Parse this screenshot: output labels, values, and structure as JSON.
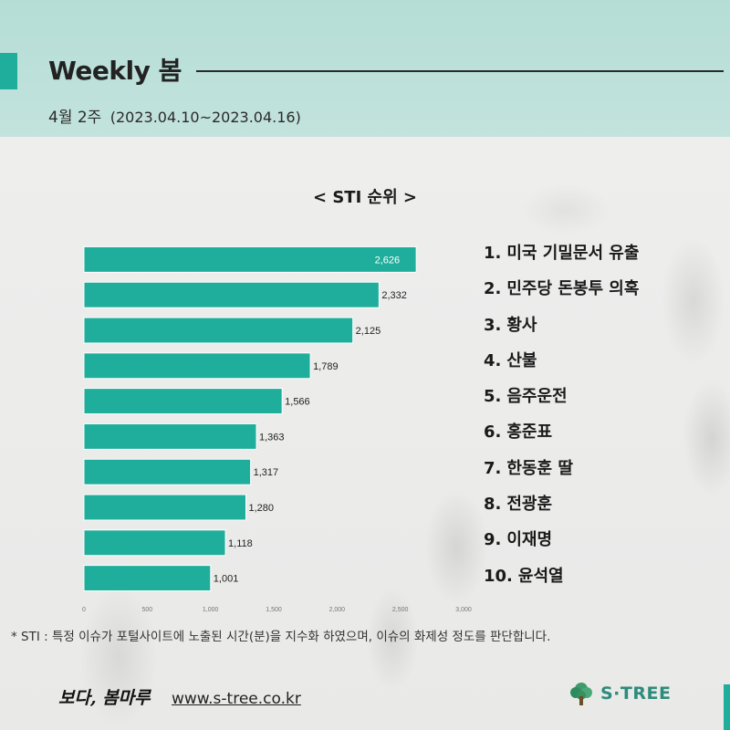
{
  "header": {
    "title": "Weekly 봄",
    "week_label": "4월 2주",
    "date_range": "(2023.04.10~2023.04.16)"
  },
  "colors": {
    "accent": "#1fae9b",
    "bar": "#1fae9b",
    "header_bg": "#bfe1db"
  },
  "chart_data": {
    "type": "bar",
    "orientation": "horizontal",
    "title": "< STI 순위 >",
    "categories": [
      "1. 미국 기밀문서 유출",
      "2. 민주당 돈봉투 의혹",
      "3. 황사",
      "4. 산불",
      "5. 음주운전",
      "6. 홍준표",
      "7. 한동훈 딸",
      "8. 전광훈",
      "9. 이재명",
      "10. 윤석열"
    ],
    "values": [
      2626,
      2332,
      2125,
      1789,
      1566,
      1363,
      1317,
      1280,
      1118,
      1001
    ],
    "value_labels": [
      "2,626",
      "2,332",
      "2,125",
      "1,789",
      "1,566",
      "1,363",
      "1,317",
      "1,280",
      "1,118",
      "1,001"
    ],
    "xlim": [
      0,
      3000
    ],
    "x_ticks": [
      0,
      500,
      1000,
      1500,
      2000,
      2500,
      3000
    ],
    "x_tick_labels": [
      "0",
      "500",
      "1,000",
      "1,500",
      "2,000",
      "2,500",
      "3,000"
    ],
    "grid": false,
    "legend": "none"
  },
  "ranking": [
    {
      "num": "1.",
      "name": "미국 기밀문서 유출"
    },
    {
      "num": "2.",
      "name": "민주당 돈봉투 의혹"
    },
    {
      "num": "3.",
      "name": "황사"
    },
    {
      "num": "4.",
      "name": "산불"
    },
    {
      "num": "5.",
      "name": "음주운전"
    },
    {
      "num": "6.",
      "name": "홍준표"
    },
    {
      "num": "7.",
      "name": "한동훈 딸"
    },
    {
      "num": "8.",
      "name": "전광훈"
    },
    {
      "num": "9.",
      "name": "이재명"
    },
    {
      "num": "10.",
      "name": "윤석열"
    }
  ],
  "footnote": "* STI : 특정 이슈가 포털사이트에 노출된 시간(분)을 지수화 하였으며, 이슈의 화제성 정도를 판단합니다.",
  "footer": {
    "brand_script": "보다, 봄마루",
    "url": "www.s-tree.co.kr",
    "logo_text": "S·TREE",
    "logo_icon": "tree-icon"
  }
}
